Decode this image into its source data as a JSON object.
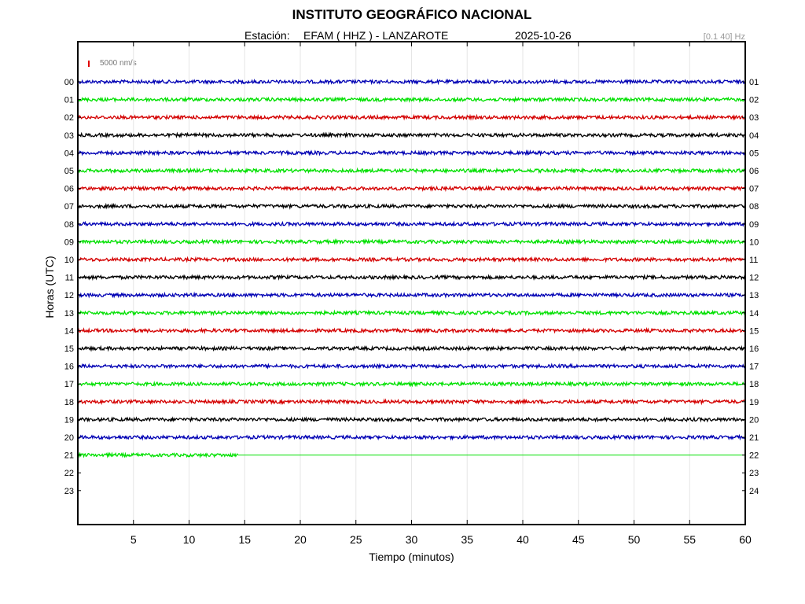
{
  "chart_data": {
    "type": "line",
    "title": "INSTITUTO GEOGRÁFICO NACIONAL",
    "station_label": "Estación:",
    "station": "EFAM ( HHZ ) - LANZAROTE",
    "date": "2025-10-26",
    "filter": "[0.1 40] Hz",
    "scale_label": "5000 nm/s",
    "xlabel": "Tiempo (minutos)",
    "ylabel": "Horas (UTC)",
    "xlim": [
      0,
      60
    ],
    "x_ticks": [
      5,
      10,
      15,
      20,
      25,
      30,
      35,
      40,
      45,
      50,
      55,
      60
    ],
    "hours_left": [
      "00",
      "01",
      "02",
      "03",
      "04",
      "05",
      "06",
      "07",
      "08",
      "09",
      "10",
      "11",
      "12",
      "13",
      "14",
      "15",
      "16",
      "17",
      "18",
      "19",
      "20",
      "21",
      "22",
      "23"
    ],
    "hours_right": [
      "01",
      "02",
      "03",
      "04",
      "05",
      "06",
      "07",
      "08",
      "09",
      "10",
      "11",
      "12",
      "13",
      "14",
      "15",
      "16",
      "17",
      "18",
      "19",
      "20",
      "21",
      "22",
      "23",
      "24"
    ],
    "trace_colors": [
      "#0000b4",
      "#00e000",
      "#d40000",
      "#000000"
    ],
    "recorded_hours": 22,
    "last_hour_end_minute": 14.4,
    "grid": true
  }
}
